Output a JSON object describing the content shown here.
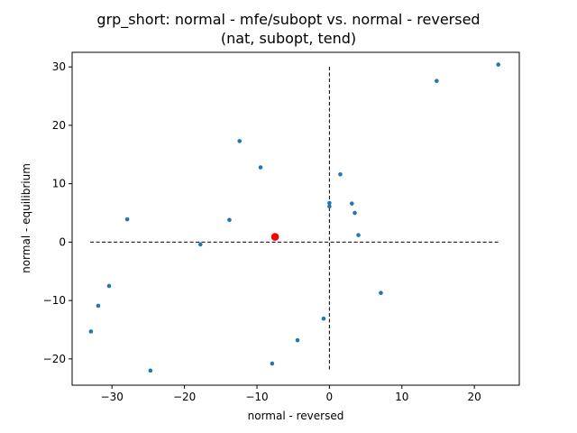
{
  "chart_data": {
    "type": "scatter",
    "title_line1": "grp_short: normal - mfe/subopt vs. normal - reversed",
    "title_line2": "(nat, subopt, tend)",
    "xlabel": "normal - reversed",
    "ylabel": "normal - equilibrium",
    "xlim": [
      -35.5,
      26.2
    ],
    "ylim": [
      -24.5,
      32.5
    ],
    "xticks": [
      -30,
      -20,
      -10,
      0,
      10,
      20
    ],
    "yticks": [
      -20,
      -10,
      0,
      10,
      20,
      30
    ],
    "xtick_labels": [
      "−30",
      "−20",
      "−10",
      "0",
      "10",
      "20"
    ],
    "ytick_labels": [
      "−20",
      "−10",
      "0",
      "10",
      "20",
      "30"
    ],
    "grid": false,
    "point_color": "#1f77b4",
    "highlight_color": "#ff0000",
    "reference_lines": {
      "horizontal": {
        "y": 0,
        "x_range": [
          -33,
          23.3
        ]
      },
      "vertical": {
        "x": 0,
        "y_range": [
          -21.8,
          30.4
        ]
      }
    },
    "points": [
      {
        "x": -32.9,
        "y": -15.3
      },
      {
        "x": -31.9,
        "y": -10.9
      },
      {
        "x": -30.4,
        "y": -7.5
      },
      {
        "x": -27.9,
        "y": 3.9
      },
      {
        "x": -24.7,
        "y": -22.0
      },
      {
        "x": -17.8,
        "y": -0.4
      },
      {
        "x": -13.8,
        "y": 3.8
      },
      {
        "x": -12.4,
        "y": 17.3
      },
      {
        "x": -9.5,
        "y": 12.8
      },
      {
        "x": -7.9,
        "y": -20.8
      },
      {
        "x": -4.4,
        "y": -16.8
      },
      {
        "x": -0.8,
        "y": -13.1
      },
      {
        "x": 0.0,
        "y": 6.7
      },
      {
        "x": 0.0,
        "y": 6.1
      },
      {
        "x": 1.5,
        "y": 11.6
      },
      {
        "x": 3.1,
        "y": 6.6
      },
      {
        "x": 3.5,
        "y": 5.0
      },
      {
        "x": 4.0,
        "y": 1.2
      },
      {
        "x": 7.1,
        "y": -8.7
      },
      {
        "x": 14.8,
        "y": 27.6
      },
      {
        "x": 23.3,
        "y": 30.4
      }
    ],
    "highlight_point": {
      "x": -7.5,
      "y": 0.9
    }
  }
}
